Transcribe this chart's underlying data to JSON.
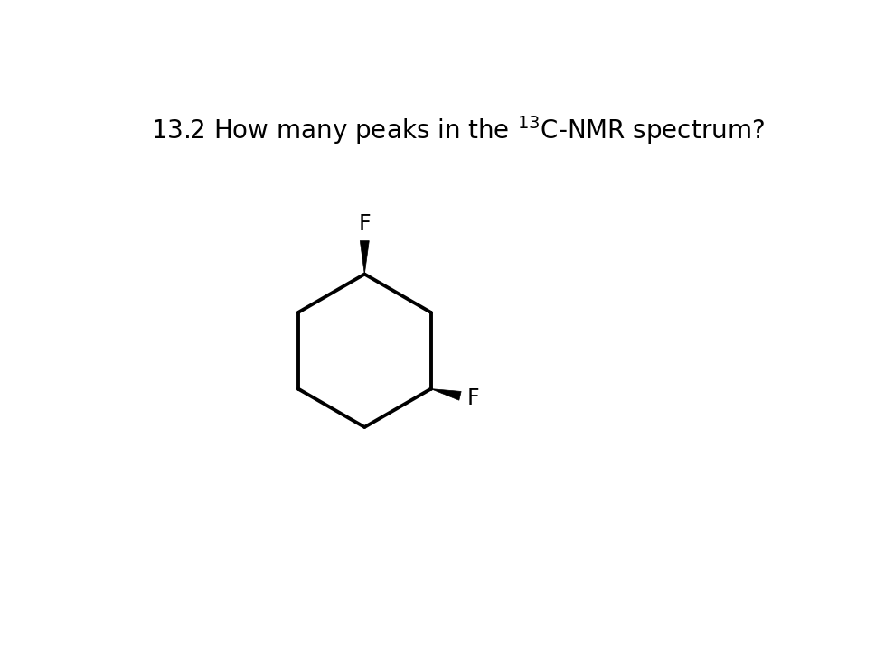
{
  "background_color": "#ffffff",
  "line_color": "#000000",
  "line_width": 2.8,
  "font_size_title": 20,
  "font_size_label": 17,
  "figsize": [
    9.89,
    7.33
  ],
  "dpi": 100,
  "f1_label": "F",
  "f2_label": "F",
  "title_text": "13.2 How many peaks in the $^{13}$C-NMR spectrum?"
}
